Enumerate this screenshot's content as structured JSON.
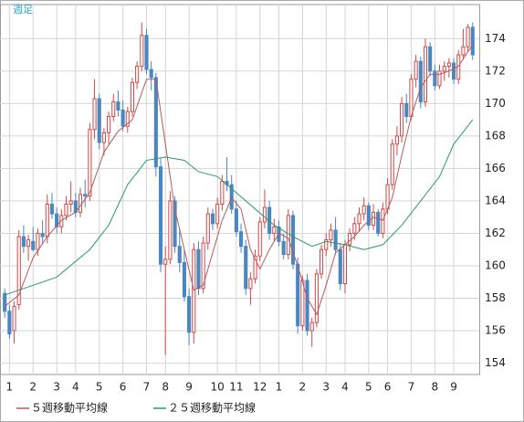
{
  "chart_data": {
    "type": "candlestick",
    "title": "週足",
    "candles": [
      [
        158.3,
        158.6,
        156.8,
        157.2
      ],
      [
        157.2,
        157.6,
        155.5,
        155.8
      ],
      [
        156,
        157.8,
        155.2,
        157.5
      ],
      [
        157.6,
        162.2,
        157.3,
        161.8
      ],
      [
        161.8,
        162.5,
        160.8,
        161.2
      ],
      [
        161.2,
        161.9,
        160.3,
        161.6
      ],
      [
        161.5,
        162.4,
        160.9,
        161
      ],
      [
        161,
        162.3,
        160.6,
        162
      ],
      [
        162,
        162.8,
        161.3,
        161.8
      ],
      [
        161.8,
        164.4,
        161.4,
        163.8
      ],
      [
        163.8,
        164.5,
        162.9,
        163.2
      ],
      [
        163.2,
        163.6,
        162,
        162.4
      ],
      [
        162.4,
        163.5,
        162,
        163.1
      ],
      [
        163.1,
        164.3,
        162.8,
        163.8
      ],
      [
        163.8,
        165.2,
        163.3,
        164
      ],
      [
        164,
        164.5,
        163,
        163.3
      ],
      [
        163.3,
        164.8,
        163,
        164.4
      ],
      [
        164.4,
        165.3,
        163.6,
        164.3
      ],
      [
        164.3,
        168.8,
        164,
        168.4
      ],
      [
        168.4,
        171.5,
        167.8,
        170.3
      ],
      [
        170.3,
        170.6,
        167.2,
        167.6
      ],
      [
        167.6,
        168.5,
        166.8,
        168.2
      ],
      [
        168.2,
        169.5,
        167.5,
        169.2
      ],
      [
        169.2,
        170.6,
        168.9,
        170.1
      ],
      [
        170.1,
        170.8,
        169.2,
        169.6
      ],
      [
        169.6,
        170.2,
        168.3,
        168.6
      ],
      [
        168.6,
        169.8,
        168.2,
        169.5
      ],
      [
        169.5,
        171.6,
        169.2,
        171.3
      ],
      [
        171.3,
        172.6,
        170.9,
        172.3
      ],
      [
        172.3,
        175,
        172,
        174.2
      ],
      [
        174.2,
        174.6,
        171.8,
        172.1
      ],
      [
        172.1,
        172.6,
        170.8,
        171.6
      ],
      [
        171.6,
        171.9,
        165.5,
        166.1
      ],
      [
        166.1,
        166.6,
        159.6,
        160.1
      ],
      [
        160.1,
        161.2,
        154.5,
        160.4
      ],
      [
        160.4,
        164.6,
        160.1,
        164
      ],
      [
        164,
        164.3,
        160.8,
        161.2
      ],
      [
        161.2,
        162.3,
        159.6,
        160.2
      ],
      [
        160.2,
        161,
        157.8,
        158.1
      ],
      [
        158.1,
        158.6,
        155.1,
        155.9
      ],
      [
        155.9,
        161.4,
        155.2,
        161
      ],
      [
        161,
        161.5,
        158.2,
        158.6
      ],
      [
        158.6,
        161.8,
        158.3,
        161.4
      ],
      [
        161.4,
        163.6,
        161,
        163.2
      ],
      [
        163.2,
        163.5,
        162.2,
        162.6
      ],
      [
        162.6,
        164.2,
        162.3,
        163.8
      ],
      [
        163.8,
        165.6,
        163.4,
        165.2
      ],
      [
        165.2,
        166.7,
        164.6,
        165
      ],
      [
        165,
        165.6,
        163.2,
        163.5
      ],
      [
        163.5,
        164,
        161.8,
        162.1
      ],
      [
        162.1,
        162.6,
        160.8,
        161.2
      ],
      [
        161.2,
        161.6,
        158.2,
        158.6
      ],
      [
        158.6,
        159.6,
        157.6,
        159.2
      ],
      [
        159.2,
        161,
        158.9,
        160.6
      ],
      [
        160.6,
        163,
        160.3,
        162.7
      ],
      [
        162.7,
        164.7,
        162.3,
        163.6
      ],
      [
        163.6,
        164,
        161.6,
        162
      ],
      [
        162,
        162.9,
        161.5,
        162.4
      ],
      [
        162.4,
        162.8,
        161.2,
        161.5
      ],
      [
        161.5,
        162,
        160.4,
        160.7
      ],
      [
        160.7,
        163.5,
        160.4,
        163.1
      ],
      [
        163.1,
        163.4,
        159.8,
        160.1
      ],
      [
        160.1,
        160.5,
        155.8,
        156.3
      ],
      [
        156.3,
        159.4,
        156,
        159.1
      ],
      [
        159.1,
        159.5,
        155.7,
        156
      ],
      [
        156,
        156.8,
        155,
        156.5
      ],
      [
        156.5,
        159.8,
        156.2,
        159.5
      ],
      [
        159.5,
        161.3,
        159.2,
        161
      ],
      [
        161,
        162,
        160.6,
        161.6
      ],
      [
        161.6,
        162.6,
        161.2,
        162.2
      ],
      [
        162.2,
        163,
        160.7,
        161
      ],
      [
        161,
        161.4,
        158.5,
        158.9
      ],
      [
        158.9,
        161.6,
        158.3,
        161.3
      ],
      [
        161.3,
        162.3,
        160.9,
        162
      ],
      [
        162,
        163,
        161.6,
        162.6
      ],
      [
        162.6,
        163.6,
        162.1,
        163.2
      ],
      [
        163.2,
        164.2,
        162.8,
        163.7
      ],
      [
        163.7,
        163.9,
        162.2,
        162.5
      ],
      [
        162.5,
        163.8,
        162.2,
        163.3
      ],
      [
        163.3,
        163.5,
        161.8,
        162
      ],
      [
        162,
        163.9,
        161.7,
        163.5
      ],
      [
        163.5,
        165.4,
        163.2,
        165
      ],
      [
        165,
        167.8,
        164.7,
        167.5
      ],
      [
        167.5,
        168.6,
        166.8,
        168
      ],
      [
        168,
        170.4,
        167.6,
        170
      ],
      [
        170,
        170.6,
        168.8,
        169.2
      ],
      [
        169.2,
        171.8,
        169,
        171.5
      ],
      [
        171.5,
        173,
        171,
        172.6
      ],
      [
        172.6,
        172.9,
        169.7,
        170.1
      ],
      [
        170.1,
        174,
        169.8,
        173.5
      ],
      [
        173.5,
        173.8,
        171.7,
        172
      ],
      [
        172,
        172.4,
        170.8,
        171.1
      ],
      [
        171.1,
        172.4,
        170.9,
        172
      ],
      [
        172,
        172.6,
        171.4,
        172.3
      ],
      [
        172.3,
        172.8,
        171.6,
        172.5
      ],
      [
        172.5,
        172.8,
        171.2,
        171.5
      ],
      [
        171.5,
        173.3,
        171.2,
        173
      ],
      [
        173,
        174.6,
        172.7,
        173.5
      ],
      [
        173.5,
        174.9,
        173.2,
        174.7
      ],
      [
        174.7,
        175,
        172.7,
        173
      ]
    ],
    "up_color": "#d04848",
    "down_color": "#4a86c0",
    "series": [
      {
        "name": "５週移動平均線",
        "color": "#b45a5a",
        "x": [
          0,
          3,
          6,
          9,
          12,
          15,
          18,
          21,
          24,
          27,
          30,
          32,
          34,
          36,
          38,
          40,
          42,
          44,
          46,
          48,
          50,
          52,
          54,
          56,
          58,
          60,
          62,
          64,
          66,
          68,
          70,
          72,
          74,
          76,
          78,
          80,
          82,
          84,
          86,
          88,
          90,
          92,
          94,
          96,
          98,
          99
        ],
        "values": [
          157.5,
          158.2,
          160.5,
          161.8,
          162.8,
          163.3,
          164.5,
          167,
          168.3,
          169,
          171.5,
          171.5,
          167.5,
          163.5,
          161,
          158.5,
          158.8,
          160.8,
          162.8,
          164.2,
          163.5,
          161,
          159.8,
          161,
          162,
          161.7,
          160,
          158,
          157,
          158.8,
          160.8,
          161.3,
          161.8,
          162.5,
          163,
          162.8,
          164.2,
          166.8,
          169.2,
          171,
          171.8,
          171.8,
          172,
          172.3,
          173.2,
          173.6
        ]
      },
      {
        "name": "２５週移動平均線",
        "color": "#2a9a6a",
        "x": [
          0,
          11,
          18,
          22,
          26,
          30,
          34,
          38,
          41,
          45,
          49,
          53,
          57,
          61,
          65,
          68,
          72,
          76,
          80,
          84,
          88,
          92,
          95,
          99
        ],
        "values": [
          158.2,
          159.3,
          161,
          162.5,
          165,
          166.5,
          166.7,
          166.5,
          165.8,
          165.5,
          164.5,
          163.5,
          162.5,
          161.8,
          161.2,
          161.5,
          161.3,
          161,
          161.3,
          162.5,
          164,
          165.5,
          167.5,
          169
        ]
      }
    ],
    "xlim": [
      -1,
      100.4
    ],
    "xticks": [
      {
        "value": 1,
        "label": "1"
      },
      {
        "value": 6,
        "label": "2"
      },
      {
        "value": 11,
        "label": "3"
      },
      {
        "value": 15,
        "label": "4"
      },
      {
        "value": 20,
        "label": "5"
      },
      {
        "value": 25,
        "label": "6"
      },
      {
        "value": 30,
        "label": "7"
      },
      {
        "value": 34,
        "label": "8"
      },
      {
        "value": 39,
        "label": "9"
      },
      {
        "value": 45,
        "label": "10"
      },
      {
        "value": 49,
        "label": "11"
      },
      {
        "value": 54,
        "label": "12"
      },
      {
        "value": 58,
        "label": "1"
      },
      {
        "value": 63,
        "label": "2"
      },
      {
        "value": 68,
        "label": "3"
      },
      {
        "value": 72,
        "label": "4"
      },
      {
        "value": 77,
        "label": "5"
      },
      {
        "value": 81,
        "label": "6"
      },
      {
        "value": 86,
        "label": "7"
      },
      {
        "value": 91,
        "label": "8"
      },
      {
        "value": 95,
        "label": "9"
      }
    ],
    "ylim": [
      153.3,
      176.1
    ],
    "yticks": [
      154,
      156,
      158,
      160,
      162,
      164,
      166,
      168,
      170,
      172,
      174
    ],
    "grid": true
  }
}
